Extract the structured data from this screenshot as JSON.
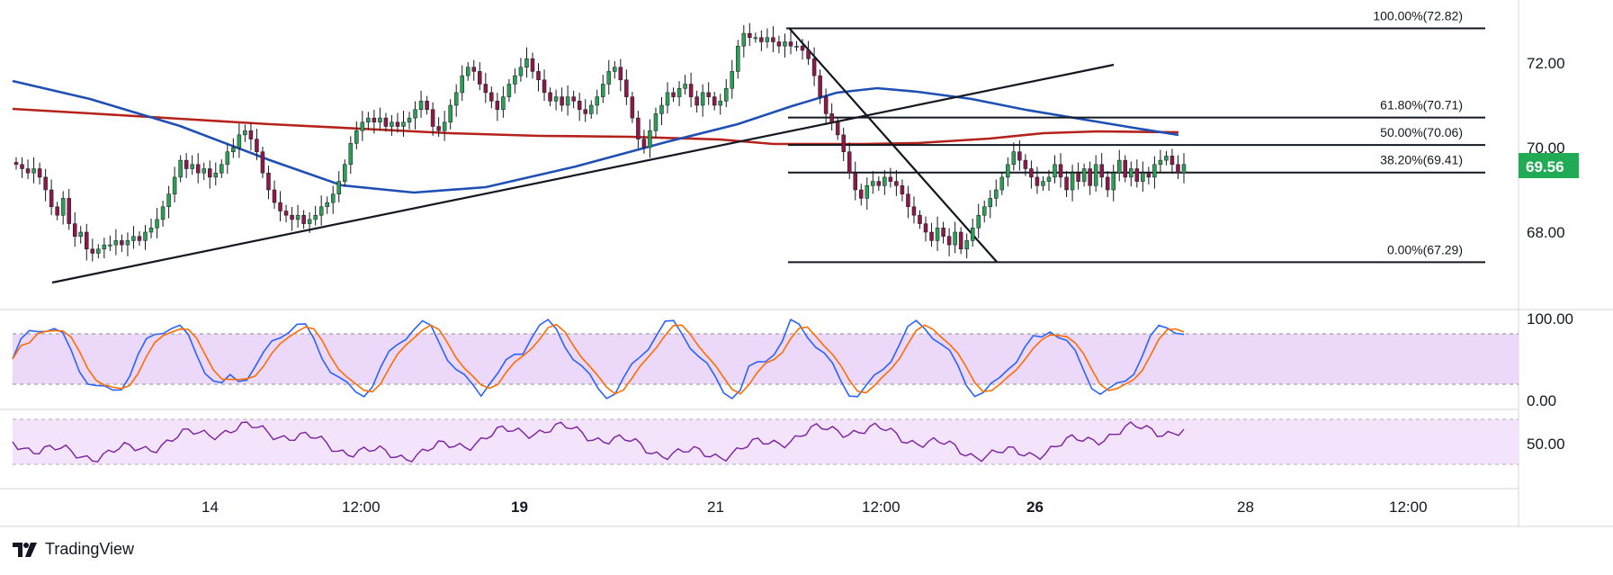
{
  "chart_data": {
    "type": "candlestick",
    "symbol_price": "69.56",
    "price_axis_labels": [
      "72.00",
      "70.00",
      "68.00"
    ],
    "price_ylim": [
      66.3,
      73.6
    ],
    "time_axis_labels": [
      "14",
      "12:00",
      "19",
      "21",
      "12:00",
      "26",
      "28",
      "12:00"
    ],
    "fibonacci": [
      {
        "label": "100.00%(72.82)",
        "level": 72.82
      },
      {
        "label": "61.80%(70.71)",
        "level": 70.71
      },
      {
        "label": "50.00%(70.06)",
        "level": 70.06
      },
      {
        "label": "38.20%(69.41)",
        "level": 69.41
      },
      {
        "label": "0.00%(67.29)",
        "level": 67.29
      }
    ],
    "moving_averages": [
      {
        "color": "#1e4fb4"
      },
      {
        "color": "#b5221b"
      }
    ],
    "stochastic": {
      "axis_labels": [
        "100.00",
        "0.00"
      ],
      "band": [
        20,
        80
      ],
      "colors": {
        "k": "#2962ff",
        "d": "#ff6d00",
        "fill": "#e9d1f7"
      }
    },
    "rsi": {
      "axis_label": "50.00",
      "color": "#7b1fa2",
      "fill": "#f3e3fb"
    },
    "accent_colors": {
      "price_tag": "#22ab55"
    }
  },
  "brand": {
    "name": "TradingView"
  }
}
